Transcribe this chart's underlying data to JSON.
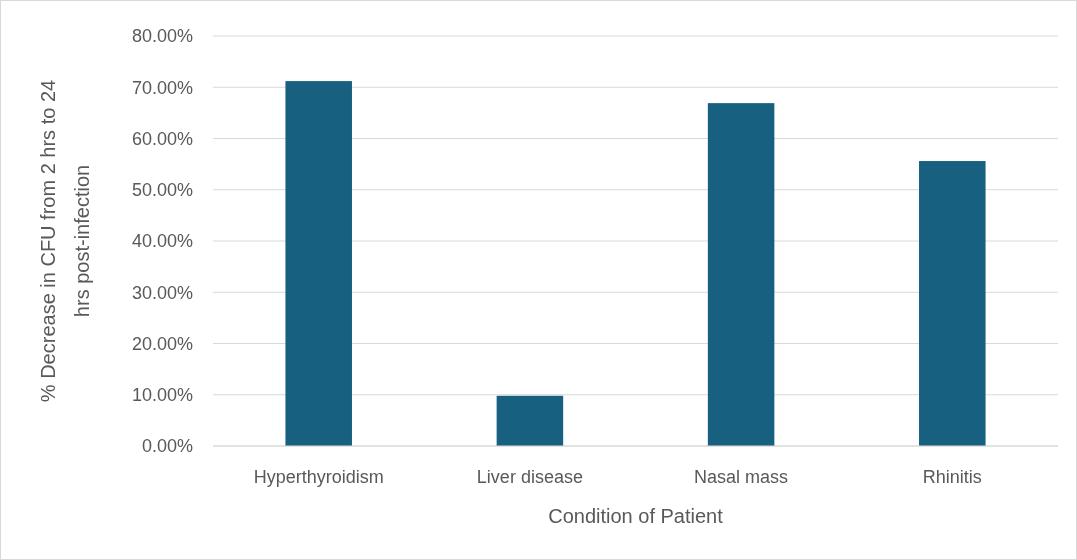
{
  "chart_data": {
    "type": "bar",
    "xlabel": "Condition of Patient",
    "ylabel": "% Decrease in CFU from 2 hrs to 24 hrs post-infection",
    "categories": [
      "Hyperthyroidism",
      "Liver disease",
      "Nasal mass",
      "Rhinitis"
    ],
    "values": [
      71.2,
      9.8,
      66.9,
      55.6
    ],
    "color": "#17607f",
    "ylim": [
      0,
      80
    ],
    "yticks": [
      {
        "value": 0,
        "label": "0.00%"
      },
      {
        "value": 10,
        "label": "10.00%"
      },
      {
        "value": 20,
        "label": "20.00%"
      },
      {
        "value": 30,
        "label": "30.00%"
      },
      {
        "value": 40,
        "label": "40.00%"
      },
      {
        "value": 50,
        "label": "50.00%"
      },
      {
        "value": 60,
        "label": "60.00%"
      },
      {
        "value": 70,
        "label": "70.00%"
      },
      {
        "value": 80,
        "label": "80.00%"
      }
    ],
    "grid": "y"
  }
}
